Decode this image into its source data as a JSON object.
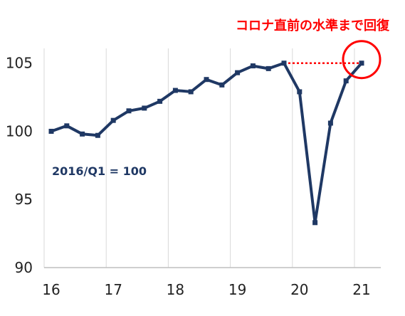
{
  "chart_data": {
    "type": "line",
    "title": "",
    "xlabel": "",
    "ylabel": "",
    "x_ticks": [
      "16",
      "17",
      "18",
      "19",
      "20",
      "21"
    ],
    "y_ticks": [
      "90",
      "95",
      "100",
      "105"
    ],
    "ylim": [
      90,
      106.5
    ],
    "grid": "vertical",
    "series": [
      {
        "x": [
          "2016Q1",
          "2016Q2",
          "2016Q3",
          "2016Q4",
          "2017Q1",
          "2017Q2",
          "2017Q3",
          "2017Q4",
          "2018Q1",
          "2018Q2",
          "2018Q3",
          "2018Q4",
          "2019Q1",
          "2019Q2",
          "2019Q3",
          "2019Q4",
          "2020Q1",
          "2020Q2",
          "2020Q3",
          "2020Q4",
          "2021Q1"
        ],
        "values": [
          100.0,
          100.4,
          99.8,
          99.7,
          100.8,
          101.5,
          101.7,
          102.2,
          103.0,
          102.9,
          103.8,
          103.4,
          104.3,
          104.8,
          104.6,
          105.0,
          102.9,
          93.3,
          100.6,
          103.7,
          105.0
        ]
      }
    ],
    "annotations": {
      "base_label": "2016/Q1 = 100",
      "headline": "コロナ直前の水準まで回復"
    }
  },
  "colors": {
    "series": "#1f3864",
    "annotation": "#ff0000",
    "grid": "#d9d9d9",
    "axis": "#bfbfbf",
    "text": "#222222"
  }
}
